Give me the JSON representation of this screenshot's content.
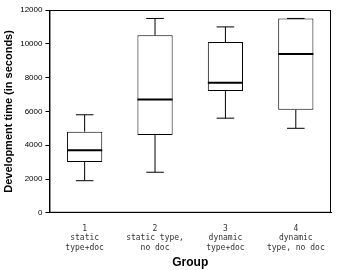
{
  "chart_data": {
    "type": "box",
    "x_label": "Group",
    "y_label": "Development time (in seconds)",
    "categories": [
      [
        "1",
        "static",
        "type+doc"
      ],
      [
        "2",
        "static type,",
        "no doc"
      ],
      [
        "3",
        "dynamic",
        "type+doc"
      ],
      [
        "4",
        "dynamic",
        "type, no doc"
      ]
    ],
    "min": [
      1900,
      2400,
      5600,
      5000
    ],
    "q1": [
      3000,
      4600,
      7200,
      6100
    ],
    "median": [
      3700,
      6700,
      7700,
      9400
    ],
    "q3": [
      4800,
      10500,
      10100,
      11500
    ],
    "max": [
      5800,
      11500,
      11000,
      11500
    ],
    "color": "#000000",
    "ylim": [
      0,
      12000
    ],
    "yticks": [
      0,
      2000,
      4000,
      6000,
      8000,
      10000,
      12000
    ],
    "grid": false
  }
}
